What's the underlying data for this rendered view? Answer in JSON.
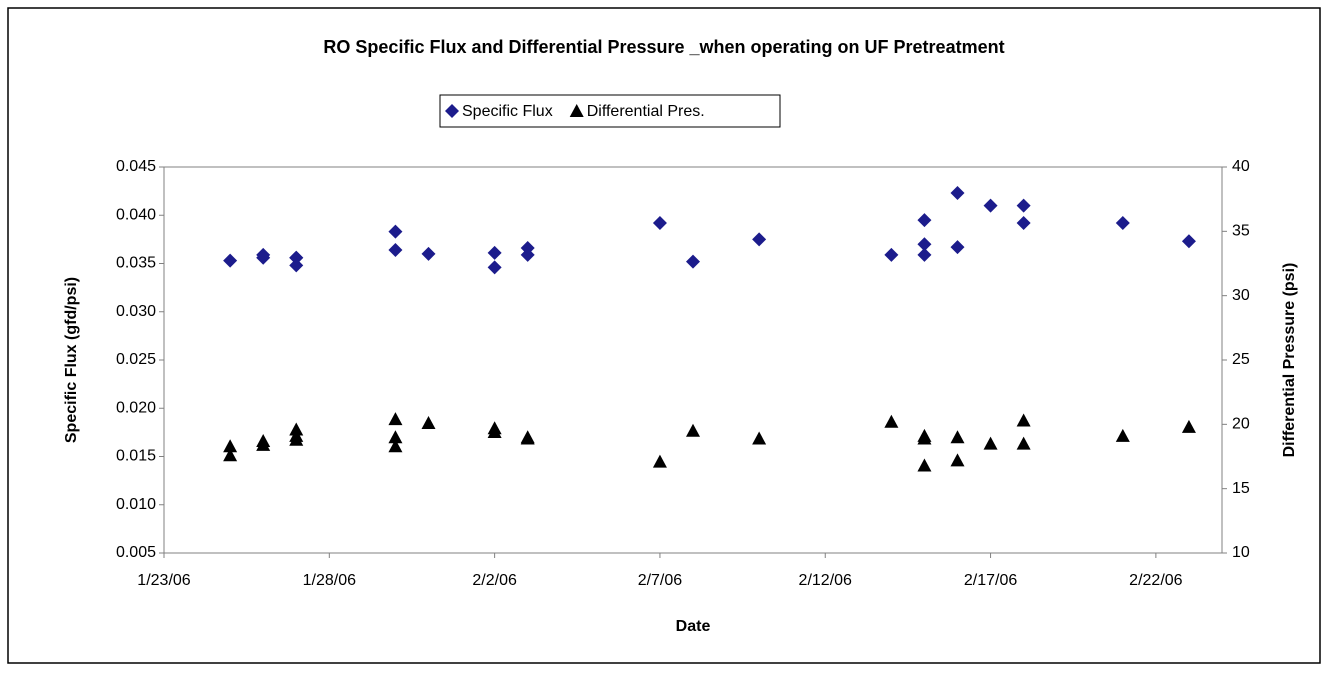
{
  "chart_data": {
    "type": "scatter",
    "title": "RO Specific Flux and Differential Pressure _when operating on UF Pretreatment",
    "x_label": "Date",
    "y_label": "Specific Flux (gfd/psi)",
    "y2_label": "Differential Pressure (psi)",
    "xlim": [
      "1/23/06",
      "2/24/06"
    ],
    "xticks": [
      "1/23/06",
      "1/28/06",
      "2/2/06",
      "2/7/06",
      "2/12/06",
      "2/17/06",
      "2/22/06"
    ],
    "ylim": [
      0.005,
      0.045
    ],
    "yticks": [
      0.005,
      {
        "value": 0.01,
        "label": "0.010"
      },
      0.015,
      {
        "value": 0.02,
        "label": "0.020"
      },
      0.025,
      {
        "value": 0.03,
        "label": "0.030"
      },
      0.035,
      {
        "value": 0.04,
        "label": "0.040"
      },
      0.045
    ],
    "y2lim": [
      10,
      40
    ],
    "y2ticks": [
      10,
      15,
      20,
      25,
      30,
      35,
      40
    ],
    "grid": false,
    "legend": "top",
    "series": [
      {
        "name": "Specific Flux",
        "color": "#1c1c8c",
        "marker": "diamond",
        "x": [
          "1/25/06",
          "1/26/06",
          "1/26/06",
          "1/27/06",
          "1/27/06",
          "1/27/06",
          "1/30/06",
          "1/30/06",
          "1/31/06",
          "2/2/06",
          "2/2/06",
          "2/3/06",
          "2/3/06",
          "2/7/06",
          "2/8/06",
          "2/10/06",
          "2/14/06",
          "2/15/06",
          "2/15/06",
          "2/15/06",
          "2/16/06",
          "2/16/06",
          "2/17/06",
          "2/18/06",
          "2/18/06",
          "2/21/06",
          "2/23/06"
        ],
        "values": [
          0.0353,
          0.0356,
          0.0359,
          0.0356,
          0.0356,
          0.0348,
          0.0364,
          0.0383,
          0.036,
          0.0361,
          0.0346,
          0.0359,
          0.0366,
          0.0392,
          0.0352,
          0.0375,
          0.0359,
          0.037,
          0.0359,
          0.0395,
          0.0367,
          0.0423,
          0.041,
          0.041,
          0.0392,
          0.0392,
          0.0373
        ]
      },
      {
        "name": "Differential Pres.",
        "color": "#000000",
        "marker": "triangle",
        "axis": "y2",
        "x": [
          "1/25/06",
          "1/25/06",
          "1/26/06",
          "1/26/06",
          "1/27/06",
          "1/27/06",
          "1/27/06",
          "1/30/06",
          "1/30/06",
          "1/30/06",
          "1/31/06",
          "2/2/06",
          "2/2/06",
          "2/3/06",
          "2/3/06",
          "2/7/06",
          "2/8/06",
          "2/10/06",
          "2/14/06",
          "2/15/06",
          "2/15/06",
          "2/15/06",
          "2/16/06",
          "2/16/06",
          "2/17/06",
          "2/18/06",
          "2/18/06",
          "2/21/06",
          "2/23/06"
        ],
        "values": [
          17.6,
          18.3,
          18.4,
          18.7,
          18.8,
          19.6,
          19.1,
          20.4,
          19.0,
          18.3,
          20.1,
          19.7,
          19.4,
          19.0,
          18.9,
          17.1,
          19.5,
          18.9,
          20.2,
          18.9,
          19.1,
          16.8,
          19.0,
          17.2,
          18.5,
          18.5,
          20.3,
          19.1,
          19.8
        ]
      }
    ]
  }
}
